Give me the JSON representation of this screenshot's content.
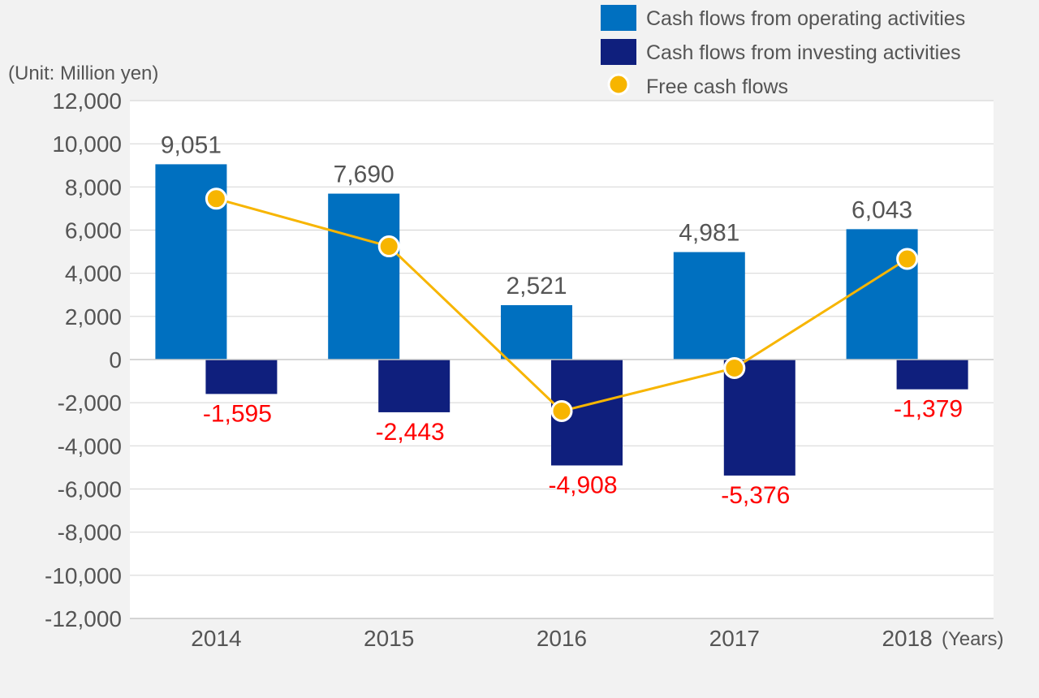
{
  "chart_data": {
    "type": "bar",
    "unit_label": "(Unit: Million yen)",
    "x_unit_label": "(Years)",
    "categories": [
      "2014",
      "2015",
      "2016",
      "2017",
      "2018"
    ],
    "ylim": [
      -12000,
      12000
    ],
    "yticks": [
      12000,
      10000,
      8000,
      6000,
      4000,
      2000,
      0,
      -2000,
      -4000,
      -6000,
      -8000,
      -10000,
      -12000
    ],
    "ytick_labels": [
      "12,000",
      "10,000",
      "8,000",
      "6,000",
      "4,000",
      "2,000",
      "0",
      "-2,000",
      "-4,000",
      "-6,000",
      "-8,000",
      "-10,000",
      "-12,000"
    ],
    "grid": true,
    "legend_position": "top-right",
    "series": [
      {
        "name": "Cash flows from operating activities",
        "kind": "bar",
        "color": "#0070c0",
        "values": [
          9051,
          7690,
          2521,
          4981,
          6043
        ],
        "labels": [
          "9,051",
          "7,690",
          "2,521",
          "4,981",
          "6,043"
        ],
        "label_color": "#555555"
      },
      {
        "name": "Cash flows from investing activities",
        "kind": "bar",
        "color": "#0f1f7d",
        "values": [
          -1595,
          -2443,
          -4908,
          -5376,
          -1379
        ],
        "labels": [
          "-1,595",
          "-2,443",
          "-4,908",
          "-5,376",
          "-1,379"
        ],
        "label_color": "#ff0000"
      },
      {
        "name": "Free cash flows",
        "kind": "line",
        "color": "#f7b500",
        "values": [
          7456,
          5247,
          -2387,
          -395,
          4664
        ]
      }
    ]
  }
}
